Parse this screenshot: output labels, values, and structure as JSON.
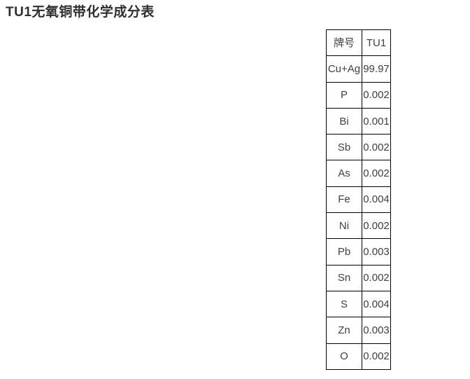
{
  "page": {
    "title": "TU1无氧铜带化学成分表"
  },
  "composition_table": {
    "columns": [
      "element",
      "value"
    ],
    "rows": [
      {
        "element": "牌号",
        "value": "TU1"
      },
      {
        "element": "Cu+Ag",
        "value": "99.97"
      },
      {
        "element": "P",
        "value": "0.002"
      },
      {
        "element": "Bi",
        "value": "0.001"
      },
      {
        "element": "Sb",
        "value": "0.002"
      },
      {
        "element": "As",
        "value": "0.002"
      },
      {
        "element": "Fe",
        "value": "0.004"
      },
      {
        "element": "Ni",
        "value": "0.002"
      },
      {
        "element": "Pb",
        "value": "0.003"
      },
      {
        "element": "Sn",
        "value": "0.002"
      },
      {
        "element": "S",
        "value": "0.004"
      },
      {
        "element": "Zn",
        "value": "0.003"
      },
      {
        "element": "O",
        "value": "0.002"
      }
    ]
  },
  "colors": {
    "background": "#ffffff",
    "title_text": "#2f2f2f",
    "table_text": "#404040",
    "table_border": "#000000"
  }
}
